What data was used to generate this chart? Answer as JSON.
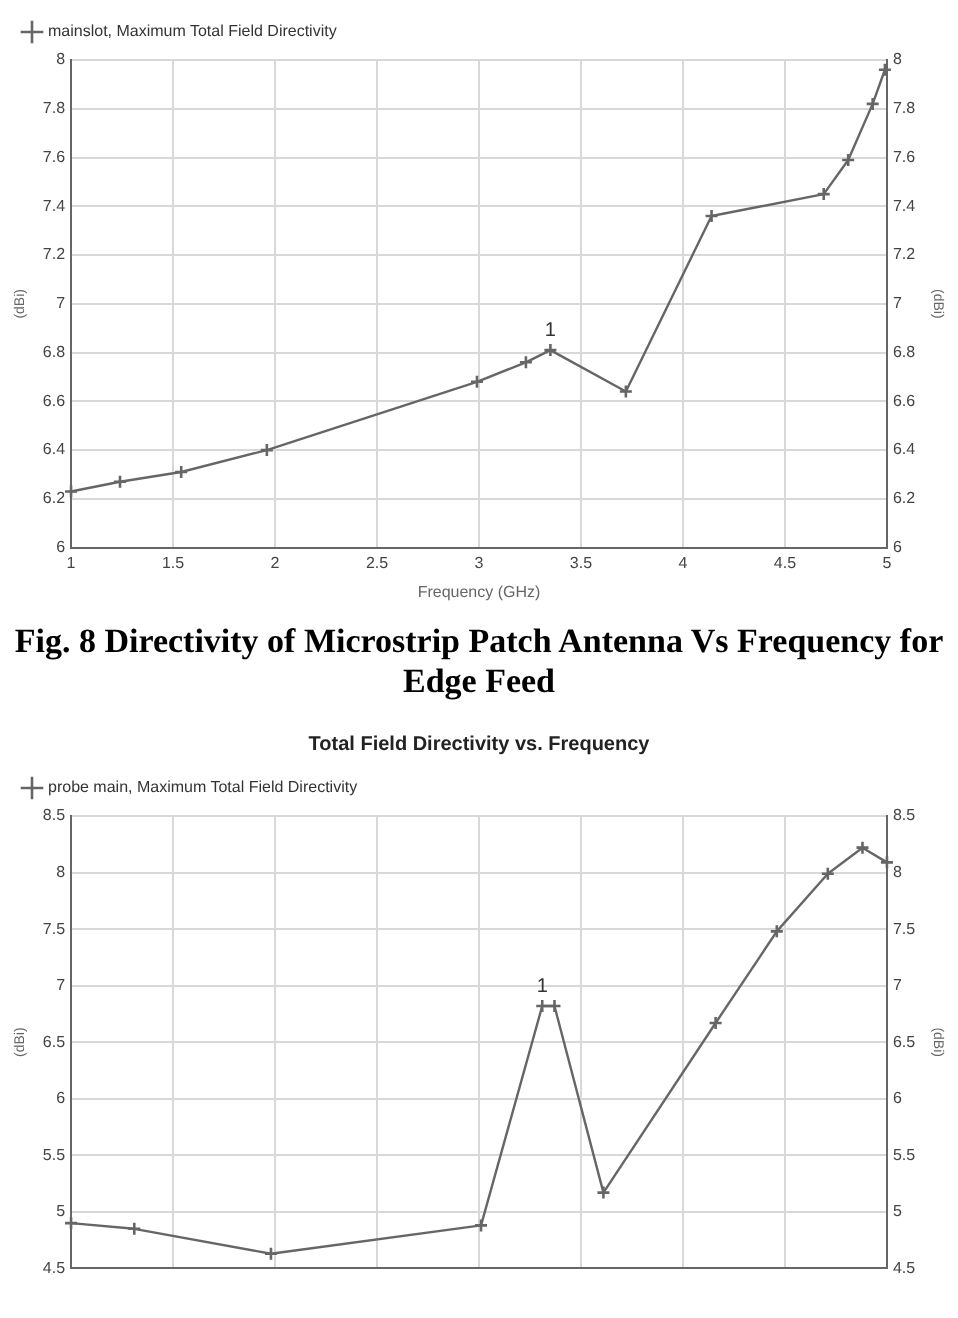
{
  "chart_data": [
    {
      "type": "line",
      "xlabel": "Frequency (GHz)",
      "ylabel": "(dBi)",
      "y2label": "(dBi)",
      "legend": "top left",
      "grid": true,
      "marker": "cross",
      "x": [
        1.0,
        1.24,
        1.54,
        1.96,
        2.99,
        3.23,
        3.35,
        3.72,
        4.14,
        4.69,
        4.81,
        4.93,
        4.99
      ],
      "series": [
        {
          "name": "mainslot, Maximum Total Field Directivity",
          "color": "#666666",
          "values": [
            6.23,
            6.27,
            6.31,
            6.4,
            6.68,
            6.76,
            6.81,
            6.64,
            7.36,
            7.45,
            7.59,
            7.82,
            7.96
          ]
        }
      ],
      "xlim": [
        1,
        5
      ],
      "xticks": [
        1,
        1.5,
        2,
        2.5,
        3,
        3.5,
        4,
        4.5,
        5
      ],
      "ylim": [
        6,
        8
      ],
      "yticks": [
        6,
        6.2,
        6.4,
        6.6,
        6.8,
        7,
        7.2,
        7.4,
        7.6,
        7.8,
        8
      ],
      "y2lim": [
        6,
        8
      ],
      "y2ticks": [
        6,
        6.2,
        6.4,
        6.6,
        6.8,
        7,
        7.2,
        7.4,
        7.6,
        7.8,
        8
      ],
      "annotations": [
        {
          "text": "1",
          "x": 3.35,
          "y": 6.81
        },
        "Fig. 8 Directivity of Microstrip Patch Antenna Vs Frequency for Edge Feed"
      ]
    },
    {
      "type": "line",
      "title": "Total Field Directivity vs. Frequency",
      "ylabel": "(dBi)",
      "y2label": "(dBi)",
      "legend": "top left",
      "grid": true,
      "marker": "cross",
      "tick_labels": "y",
      "x": [
        1.0,
        1.31,
        1.98,
        3.01,
        3.31,
        3.37,
        3.61,
        4.16,
        4.46,
        4.71,
        4.88,
        5.0
      ],
      "series": [
        {
          "name": "probe main, Maximum Total Field Directivity",
          "color": "#666666",
          "values": [
            4.9,
            4.85,
            4.63,
            4.88,
            6.82,
            6.82,
            5.17,
            6.67,
            7.48,
            7.99,
            8.22,
            8.09
          ]
        }
      ],
      "xlim": [
        1,
        5
      ],
      "xticks": [
        {
          "value": 1,
          "label": null
        },
        {
          "value": 1.5,
          "label": null
        },
        {
          "value": 2,
          "label": null
        },
        {
          "value": 2.5,
          "label": null
        },
        {
          "value": 3,
          "label": null
        },
        {
          "value": 3.5,
          "label": null
        },
        {
          "value": 4,
          "label": null
        },
        {
          "value": 4.5,
          "label": null
        },
        {
          "value": 5,
          "label": null
        }
      ],
      "ylim": [
        4.5,
        8.5
      ],
      "yticks": [
        4.5,
        5,
        5.5,
        6,
        6.5,
        7,
        7.5,
        8,
        8.5
      ],
      "y2lim": [
        4.5,
        8.5
      ],
      "y2ticks": [
        4.5,
        5,
        5.5,
        6,
        6.5,
        7,
        7.5,
        8,
        8.5
      ],
      "annotations": [
        {
          "text": "1",
          "x": 3.31,
          "y": 6.82
        }
      ]
    }
  ]
}
